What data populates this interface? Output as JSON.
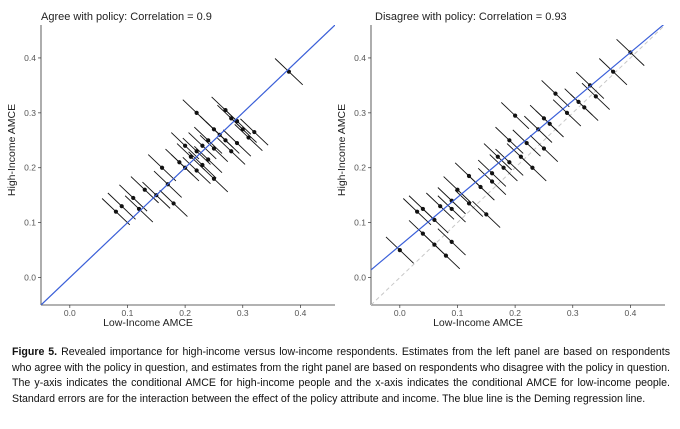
{
  "chart_data": [
    {
      "type": "scatter",
      "title": "Agree with policy: Correlation = 0.9",
      "xlabel": "Low-Income AMCE",
      "ylabel": "High-Income AMCE",
      "xlim": [
        -0.05,
        0.46
      ],
      "ylim": [
        -0.05,
        0.46
      ],
      "xticks": [
        "0.0",
        "0.1",
        "0.2",
        "0.3",
        "0.4"
      ],
      "yticks": [
        "0.0",
        "0.1",
        "0.2",
        "0.3",
        "0.4"
      ],
      "regression_line": {
        "intercept": 0.0,
        "slope": 1.0,
        "color": "#3a5fd9",
        "label": "Deming regression line"
      },
      "identity_line": {
        "color": "#c8c8c8",
        "style": "dashed"
      },
      "points": [
        [
          0.38,
          0.375
        ],
        [
          0.27,
          0.305
        ],
        [
          0.22,
          0.3
        ],
        [
          0.28,
          0.29
        ],
        [
          0.29,
          0.285
        ],
        [
          0.25,
          0.27
        ],
        [
          0.3,
          0.27
        ],
        [
          0.32,
          0.265
        ],
        [
          0.26,
          0.26
        ],
        [
          0.31,
          0.255
        ],
        [
          0.24,
          0.25
        ],
        [
          0.27,
          0.25
        ],
        [
          0.29,
          0.245
        ],
        [
          0.23,
          0.24
        ],
        [
          0.2,
          0.24
        ],
        [
          0.25,
          0.235
        ],
        [
          0.22,
          0.23
        ],
        [
          0.28,
          0.23
        ],
        [
          0.21,
          0.22
        ],
        [
          0.24,
          0.215
        ],
        [
          0.19,
          0.21
        ],
        [
          0.23,
          0.205
        ],
        [
          0.2,
          0.2
        ],
        [
          0.22,
          0.195
        ],
        [
          0.16,
          0.2
        ],
        [
          0.25,
          0.18
        ],
        [
          0.17,
          0.17
        ],
        [
          0.13,
          0.16
        ],
        [
          0.15,
          0.15
        ],
        [
          0.18,
          0.135
        ],
        [
          0.11,
          0.145
        ],
        [
          0.09,
          0.13
        ],
        [
          0.12,
          0.125
        ],
        [
          0.08,
          0.12
        ]
      ]
    },
    {
      "type": "scatter",
      "title": "Disagree with policy: Correlation = 0.93",
      "xlabel": "Low-Income AMCE",
      "ylabel": "High-Income AMCE",
      "xlim": [
        -0.05,
        0.46
      ],
      "ylim": [
        -0.05,
        0.46
      ],
      "xticks": [
        "0.0",
        "0.1",
        "0.2",
        "0.3",
        "0.4"
      ],
      "yticks": [
        "0.0",
        "0.1",
        "0.2",
        "0.3",
        "0.4"
      ],
      "regression_line": {
        "intercept": 0.058,
        "slope": 0.88,
        "color": "#3a5fd9",
        "label": "Deming regression line"
      },
      "identity_line": {
        "color": "#c8c8c8",
        "style": "dashed"
      },
      "points": [
        [
          0.4,
          0.41
        ],
        [
          0.37,
          0.375
        ],
        [
          0.33,
          0.35
        ],
        [
          0.34,
          0.33
        ],
        [
          0.31,
          0.32
        ],
        [
          0.32,
          0.31
        ],
        [
          0.27,
          0.335
        ],
        [
          0.29,
          0.3
        ],
        [
          0.25,
          0.29
        ],
        [
          0.26,
          0.28
        ],
        [
          0.24,
          0.27
        ],
        [
          0.2,
          0.295
        ],
        [
          0.19,
          0.25
        ],
        [
          0.22,
          0.245
        ],
        [
          0.25,
          0.235
        ],
        [
          0.21,
          0.22
        ],
        [
          0.17,
          0.22
        ],
        [
          0.19,
          0.21
        ],
        [
          0.16,
          0.19
        ],
        [
          0.18,
          0.2
        ],
        [
          0.23,
          0.2
        ],
        [
          0.16,
          0.175
        ],
        [
          0.12,
          0.185
        ],
        [
          0.14,
          0.165
        ],
        [
          0.1,
          0.16
        ],
        [
          0.09,
          0.14
        ],
        [
          0.12,
          0.135
        ],
        [
          0.07,
          0.13
        ],
        [
          0.09,
          0.125
        ],
        [
          0.04,
          0.125
        ],
        [
          0.03,
          0.12
        ],
        [
          0.15,
          0.115
        ],
        [
          0.06,
          0.105
        ],
        [
          0.04,
          0.08
        ],
        [
          0.09,
          0.065
        ],
        [
          0.06,
          0.06
        ],
        [
          0.08,
          0.04
        ],
        [
          0.0,
          0.05
        ]
      ]
    }
  ],
  "caption": {
    "label": "Figure 5.",
    "text": "Revealed importance for high-income versus low-income respondents. Estimates from the left panel are based on respondents who agree with the policy in question, and estimates from the right panel are based on respondents who disagree with the policy in question. The y-axis indicates the conditional AMCE for high-income people and the x-axis indicates the conditional AMCE for low-income people. Standard errors are for the interaction between the effect of the policy attribute and income. The blue line is the Deming regression line."
  }
}
